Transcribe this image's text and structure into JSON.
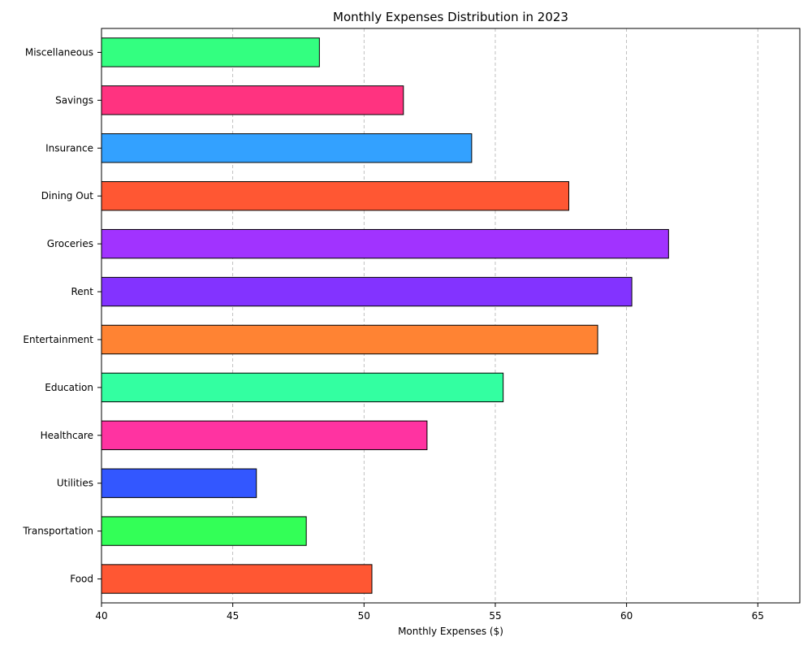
{
  "chart_data": {
    "type": "bar",
    "orientation": "horizontal",
    "title": "Monthly Expenses Distribution in 2023",
    "xlabel": "Monthly Expenses ($)",
    "ylabel": "",
    "xlim": [
      40,
      66.6
    ],
    "xticks": [
      40,
      45,
      50,
      55,
      60,
      65
    ],
    "grid": "x-axis dashed",
    "categories": [
      "Food",
      "Transportation",
      "Utilities",
      "Healthcare",
      "Education",
      "Entertainment",
      "Rent",
      "Groceries",
      "Dining Out",
      "Insurance",
      "Savings",
      "Miscellaneous"
    ],
    "values": [
      50.3,
      47.8,
      45.9,
      52.4,
      55.3,
      58.9,
      60.2,
      61.6,
      57.8,
      54.1,
      51.5,
      48.3
    ],
    "colors": [
      "#FF5733",
      "#33FF57",
      "#3357FF",
      "#FF33A1",
      "#33FFA1",
      "#FF8333",
      "#8333FF",
      "#A133FF",
      "#FF5733",
      "#33A1FF",
      "#FF3380",
      "#33FF80"
    ]
  }
}
